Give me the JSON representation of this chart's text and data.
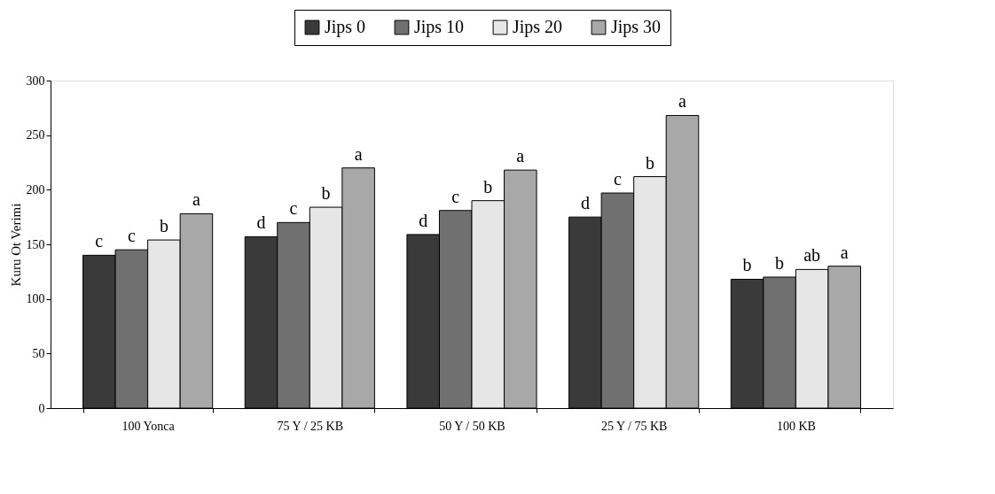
{
  "chart_data": {
    "type": "bar",
    "ylabel": "Kuru Ot Verimi",
    "categories": [
      "100 Yonca",
      "75 Y / 25 KB",
      "50 Y / 50 KB",
      "25 Y / 75 KB",
      "100 KB"
    ],
    "series": [
      {
        "name": "Jips 0",
        "color": "#3a3a3a",
        "values": [
          140,
          157,
          159,
          175,
          118
        ],
        "value_labels": [
          "c",
          "d",
          "d",
          "d",
          "b"
        ]
      },
      {
        "name": "Jips 10",
        "color": "#707070",
        "values": [
          145,
          170,
          181,
          197,
          120
        ],
        "value_labels": [
          "c",
          "c",
          "c",
          "c",
          "b"
        ]
      },
      {
        "name": "Jips 20",
        "color": "#e6e6e6",
        "values": [
          154,
          184,
          190,
          212,
          127
        ],
        "value_labels": [
          "b",
          "b",
          "b",
          "b",
          "ab"
        ]
      },
      {
        "name": "Jips 30",
        "color": "#a8a8a8",
        "values": [
          178,
          220,
          218,
          268,
          130
        ],
        "value_labels": [
          "a",
          "a",
          "a",
          "a",
          "a"
        ]
      }
    ],
    "ylim": [
      0,
      300
    ],
    "yticks": [
      0,
      50,
      100,
      150,
      200,
      250,
      300
    ],
    "grid": false,
    "legend": "top"
  }
}
